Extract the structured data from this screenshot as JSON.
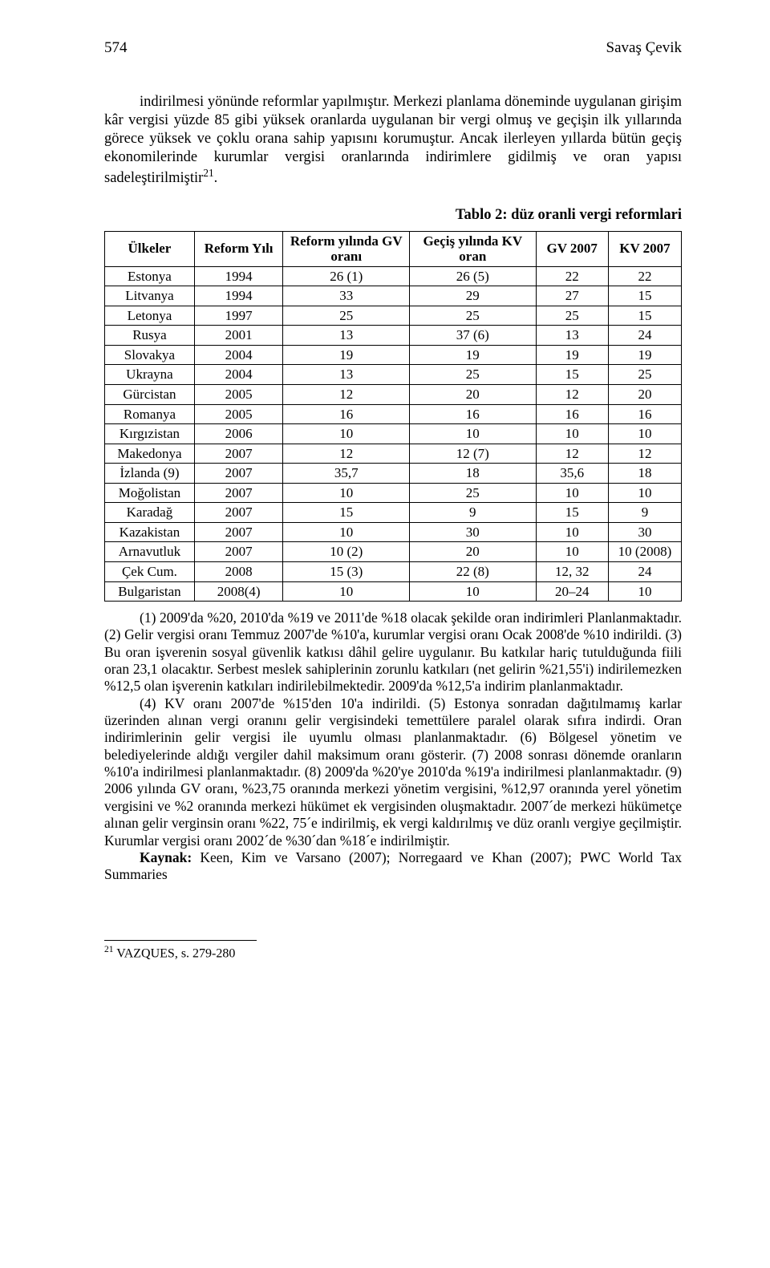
{
  "header": {
    "page_number": "574",
    "author": "Savaş Çevik"
  },
  "body": {
    "paragraph": "indirilmesi yönünde reformlar yapılmıştır. Merkezi planlama döneminde uygulanan girişim kâr vergisi yüzde 85 gibi yüksek oranlarda uygulanan bir vergi olmuş ve geçişin ilk yıllarında görece yüksek ve çoklu orana sahip yapısını korumuştur. Ancak ilerleyen yıllarda bütün geçiş ekonomilerinde kurumlar vergisi oranlarında indirimlere gidilmiş ve oran yapısı sadeleştirilmiştir",
    "footnote_mark": "21",
    "paragraph_end": "."
  },
  "table": {
    "caption": "Tablo 2: düz oranli vergi reformlari",
    "columns": {
      "ulkeler": "Ülkeler",
      "reform_yili": "Reform Yılı",
      "gv_oran": "Reform yılında GV oranı",
      "kv_oran": "Geçiş yılında KV oran",
      "gv_2007": "GV 2007",
      "kv_2007": "KV 2007"
    },
    "rows": [
      [
        "Estonya",
        "1994",
        "26 (1)",
        "26 (5)",
        "22",
        "22"
      ],
      [
        "Litvanya",
        "1994",
        "33",
        "29",
        "27",
        "15"
      ],
      [
        "Letonya",
        "1997",
        "25",
        "25",
        "25",
        "15"
      ],
      [
        "Rusya",
        "2001",
        "13",
        "37 (6)",
        "13",
        "24"
      ],
      [
        "Slovakya",
        "2004",
        "19",
        "19",
        "19",
        "19"
      ],
      [
        "Ukrayna",
        "2004",
        "13",
        "25",
        "15",
        "25"
      ],
      [
        "Gürcistan",
        "2005",
        "12",
        "20",
        "12",
        "20"
      ],
      [
        "Romanya",
        "2005",
        "16",
        "16",
        "16",
        "16"
      ],
      [
        "Kırgızistan",
        "2006",
        "10",
        "10",
        "10",
        "10"
      ],
      [
        "Makedonya",
        "2007",
        "12",
        "12 (7)",
        "12",
        "12"
      ],
      [
        "İzlanda (9)",
        "2007",
        "35,7",
        "18",
        "35,6",
        "18"
      ],
      [
        "Moğolistan",
        "2007",
        "10",
        "25",
        "10",
        "10"
      ],
      [
        "Karadağ",
        "2007",
        "15",
        "9",
        "15",
        "9"
      ],
      [
        "Kazakistan",
        "2007",
        "10",
        "30",
        "10",
        "30"
      ],
      [
        "Arnavutluk",
        "2007",
        "10 (2)",
        "20",
        "10",
        "10 (2008)"
      ],
      [
        "Çek Cum.",
        "2008",
        "15 (3)",
        "22 (8)",
        "12, 32",
        "24"
      ],
      [
        "Bulgaristan",
        "2008(4)",
        "10",
        "10",
        "20–24",
        "10"
      ]
    ]
  },
  "notes": {
    "n1_lead": "(1)",
    "n1": " 2009'da %20, 2010'da %19 ve 2011'de %18 olacak şekilde oran indirimleri Planlanmaktadır. (2) Gelir vergisi oranı Temmuz 2007'de %10'a, kurumlar vergisi oranı Ocak 2008'de %10 indirildi. (3) Bu oran işverenin sosyal güvenlik katkısı dâhil gelire uygulanır. Bu katkılar hariç tutulduğunda fiili oran 23,1 olacaktır. Serbest meslek sahiplerinin zorunlu katkıları (net gelirin %21,55'i) indirilemezken %12,5 olan işverenin katkıları indirilebilmektedir. 2009'da %12,5'a indirim planlanmaktadır.",
    "n2": "(4) KV oranı 2007'de %15'den 10'a indirildi. (5) Estonya sonradan dağıtılmamış karlar üzerinden alınan vergi oranını gelir vergisindeki temettülere paralel olarak sıfıra indirdi. Oran indirimlerinin gelir vergisi ile uyumlu olması planlanmaktadır. (6) Bölgesel yönetim ve belediyelerinde aldığı vergiler dahil maksimum oranı gösterir. (7) 2008 sonrası dönemde oranların %10'a indirilmesi planlanmaktadır. (8) 2009'da %20'ye 2010'da %19'a indirilmesi planlanmaktadır. (9) 2006 yılında GV oranı, %23,75 oranında merkezi yönetim vergisini, %12,97 oranında yerel yönetim vergisini ve %2 oranında merkezi hükümet ek vergisinden oluşmaktadır. 2007´de merkezi hükümetçe alınan gelir verginsin oranı %22, 75´e indirilmiş, ek vergi kaldırılmış ve düz oranlı vergiye geçilmiştir. Kurumlar vergisi oranı 2002´de %30´dan %18´e indirilmiştir.",
    "source_label": "Kaynak:",
    "source_text": " Keen, Kim ve Varsano (2007); Norregaard ve Khan (2007); PWC World Tax Summaries"
  },
  "footnote": {
    "mark": "21",
    "text": " VAZQUES, s. 279-280"
  }
}
